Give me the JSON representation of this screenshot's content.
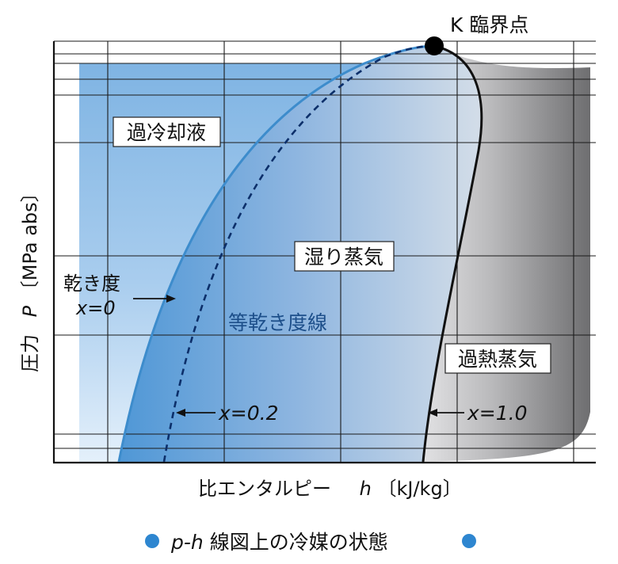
{
  "critical_point": "K 臨界点",
  "regions": {
    "subcooled_liquid": "過冷却液",
    "wet_vapor": "湿り蒸気",
    "superheated_vapor": "過熱蒸気"
  },
  "iso_quality_label": "等乾き度線",
  "dryness_label": "乾き度",
  "quality_x0": "x=0",
  "quality_x02": "x=0.2",
  "quality_x10": "x=1.0",
  "axis": {
    "y_prefix": "圧力",
    "y_symbol": "P",
    "y_unit": "〔MPa abs〕",
    "x_label": "比エンタルピー",
    "x_symbol": "h",
    "x_unit": "〔kJ/kg〕"
  },
  "caption": {
    "symbol": "p-h",
    "text": " 線図上の冷媒の状態"
  },
  "colors": {
    "liquid_region": "#8fbde6",
    "wet_region": "#9ab6d8",
    "vapor_region": "#9a9a9a",
    "saturated_liquid_line": "#3d8ccc",
    "caption_dot": "#2e86d0"
  }
}
